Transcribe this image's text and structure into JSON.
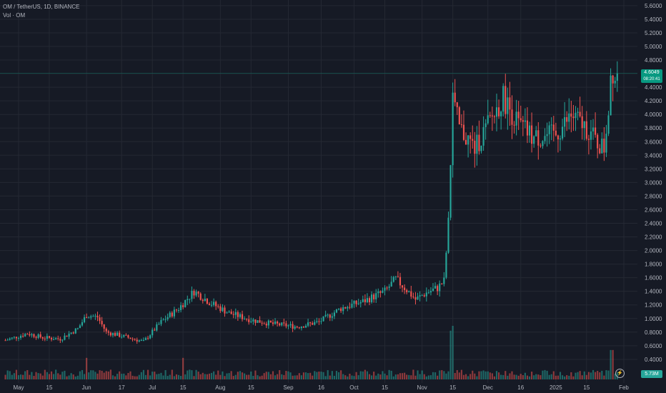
{
  "legend": {
    "symbol_line": "OM / TetherUS, 1D, BINANCE",
    "volume_line": "Vol · OM"
  },
  "price_label": {
    "price": "4.6049",
    "countdown": "08:20:41"
  },
  "volume_label": "5.73M",
  "colors": {
    "up": "#26a69a",
    "down": "#ef5350",
    "grid": "#242833",
    "text": "#b2b5be",
    "bg": "#161a25"
  },
  "icons": {
    "lightning": "lightning-icon"
  },
  "chart_data": {
    "type": "candlestick",
    "y_axis_labels": [
      "0.4000",
      "0.6000",
      "0.8000",
      "1.0000",
      "1.2000",
      "1.4000",
      "1.6000",
      "1.8000",
      "2.0000",
      "2.2000",
      "2.4000",
      "2.6000",
      "2.8000",
      "3.0000",
      "3.2000",
      "3.4000",
      "3.6000",
      "3.8000",
      "4.0000",
      "4.2000",
      "4.4000",
      "4.6000",
      "4.8000",
      "5.0000",
      "5.2000",
      "5.4000",
      "5.6000"
    ],
    "ylim": [
      0.22,
      5.62
    ],
    "x_axis_labels": [
      "May",
      "15",
      "Jun",
      "17",
      "Jul",
      "15",
      "Aug",
      "15",
      "Sep",
      "16",
      "Oct",
      "15",
      "Nov",
      "15",
      "Dec",
      "16",
      "2025",
      "15",
      "Feb"
    ],
    "x_axis_dates": [
      "2024-05-01",
      "2024-05-15",
      "2024-06-01",
      "2024-06-17",
      "2024-07-01",
      "2024-07-15",
      "2024-08-01",
      "2024-08-15",
      "2024-09-01",
      "2024-09-16",
      "2024-10-01",
      "2024-10-15",
      "2024-11-01",
      "2024-11-15",
      "2024-12-01",
      "2024-12-16",
      "2025-01-01",
      "2025-01-15",
      "2025-02-01"
    ],
    "last_price": 4.6049,
    "keyframes": [
      [
        "2024-04-25",
        0.68
      ],
      [
        "2024-05-05",
        0.78
      ],
      [
        "2024-05-12",
        0.72
      ],
      [
        "2024-05-20",
        0.7
      ],
      [
        "2024-05-28",
        0.85
      ],
      [
        "2024-06-01",
        1.05
      ],
      [
        "2024-06-06",
        1.02
      ],
      [
        "2024-06-10",
        0.8
      ],
      [
        "2024-06-20",
        0.72
      ],
      [
        "2024-06-27",
        0.66
      ],
      [
        "2024-07-05",
        0.95
      ],
      [
        "2024-07-13",
        1.15
      ],
      [
        "2024-07-20",
        1.4
      ],
      [
        "2024-07-28",
        1.22
      ],
      [
        "2024-08-05",
        1.08
      ],
      [
        "2024-08-15",
        0.98
      ],
      [
        "2024-08-25",
        0.92
      ],
      [
        "2024-09-05",
        0.88
      ],
      [
        "2024-09-15",
        0.95
      ],
      [
        "2024-09-25",
        1.15
      ],
      [
        "2024-10-05",
        1.25
      ],
      [
        "2024-10-15",
        1.4
      ],
      [
        "2024-10-20",
        1.58
      ],
      [
        "2024-10-25",
        1.42
      ],
      [
        "2024-10-29",
        1.28
      ],
      [
        "2024-11-03",
        1.38
      ],
      [
        "2024-11-08",
        1.45
      ],
      [
        "2024-11-11",
        1.55
      ],
      [
        "2024-11-13",
        2.4
      ],
      [
        "2024-11-15",
        4.2
      ],
      [
        "2024-11-18",
        3.8
      ],
      [
        "2024-11-25",
        3.5
      ],
      [
        "2024-12-02",
        3.9
      ],
      [
        "2024-12-08",
        4.25
      ],
      [
        "2024-12-15",
        3.85
      ],
      [
        "2024-12-22",
        3.65
      ],
      [
        "2025-01-01",
        3.7
      ],
      [
        "2025-01-08",
        3.98
      ],
      [
        "2025-01-15",
        3.8
      ],
      [
        "2025-01-20",
        3.58
      ],
      [
        "2025-01-23",
        3.5
      ],
      [
        "2025-01-25",
        4.1
      ],
      [
        "2025-01-26",
        4.6
      ],
      [
        "2025-01-27",
        4.65
      ],
      [
        "2025-01-28",
        4.55
      ],
      [
        "2025-01-29",
        4.6
      ]
    ],
    "volume_note": "volume histogram at bottom, spike on 2024-11-15 and 2025-01-26"
  }
}
